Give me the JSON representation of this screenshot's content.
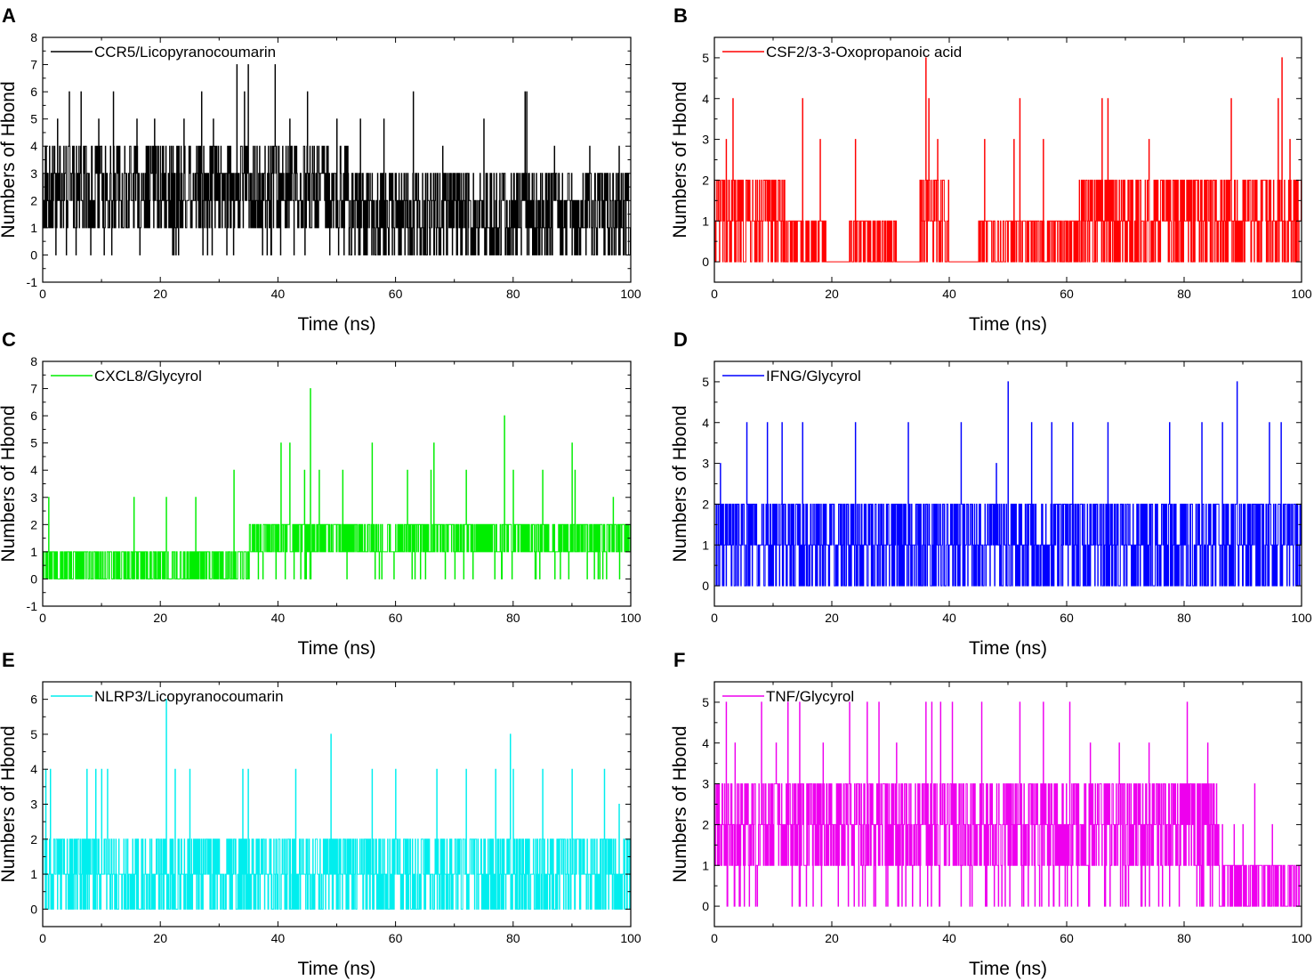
{
  "chart_data": [
    {
      "panel": "A",
      "type": "line",
      "color": "#000000",
      "legend": "CCR5/Licopyranocoumarin",
      "xlabel": "Time (ns)",
      "ylabel": "Numbers of Hbond",
      "xlim": [
        0,
        100
      ],
      "ylim": [
        -1,
        8
      ],
      "xticks": [
        0,
        20,
        40,
        60,
        80,
        100
      ],
      "yticks": [
        -1,
        0,
        1,
        2,
        3,
        4,
        5,
        6,
        7,
        8
      ],
      "segments": [
        {
          "t0": 0,
          "t1": 52,
          "base": [
            1,
            4
          ],
          "dip": 0,
          "dipProb": 0.04
        },
        {
          "t0": 52,
          "t1": 100,
          "base": [
            0,
            3
          ],
          "dip": 0,
          "dipProb": 0.0
        }
      ],
      "spikes": [
        [
          2.5,
          5
        ],
        [
          4.5,
          6
        ],
        [
          6.5,
          6
        ],
        [
          9.5,
          5
        ],
        [
          12,
          6
        ],
        [
          16,
          5
        ],
        [
          19,
          5
        ],
        [
          24,
          5
        ],
        [
          27,
          6
        ],
        [
          29,
          5
        ],
        [
          33,
          7
        ],
        [
          34.3,
          6
        ],
        [
          35,
          7
        ],
        [
          39.5,
          7
        ],
        [
          42,
          5
        ],
        [
          45,
          6
        ],
        [
          50,
          5
        ],
        [
          54,
          5
        ],
        [
          58,
          5
        ],
        [
          63,
          6
        ],
        [
          68,
          4
        ],
        [
          75,
          5
        ],
        [
          82,
          6
        ],
        [
          82.3,
          6
        ],
        [
          87,
          4
        ],
        [
          93,
          4
        ],
        [
          98,
          4
        ]
      ]
    },
    {
      "panel": "B",
      "type": "line",
      "color": "#ff0000",
      "legend": "CSF2/3-3-Oxopropanoic acid",
      "xlabel": "Time (ns)",
      "ylabel": "Numbers of Hbond",
      "xlim": [
        0,
        100
      ],
      "ylim": [
        -0.5,
        5.5
      ],
      "xticks": [
        0,
        20,
        40,
        60,
        80,
        100
      ],
      "yticks": [
        0,
        1,
        2,
        3,
        4,
        5
      ],
      "segments": [
        {
          "t0": 0,
          "t1": 12,
          "base": [
            0,
            2
          ],
          "dip": 0,
          "dipProb": 0.0
        },
        {
          "t0": 12,
          "t1": 19,
          "base": [
            0,
            1
          ],
          "dip": 0,
          "dipProb": 0.0
        },
        {
          "t0": 19,
          "t1": 23,
          "base": [
            0,
            0
          ],
          "dip": 0,
          "dipProb": 0.0
        },
        {
          "t0": 23,
          "t1": 31,
          "base": [
            0,
            1
          ],
          "dip": 0,
          "dipProb": 0.0
        },
        {
          "t0": 31,
          "t1": 35,
          "base": [
            0,
            0
          ],
          "dip": 0,
          "dipProb": 0.0
        },
        {
          "t0": 35,
          "t1": 40,
          "base": [
            0,
            2
          ],
          "dip": 0,
          "dipProb": 0.0
        },
        {
          "t0": 40,
          "t1": 45,
          "base": [
            0,
            0
          ],
          "dip": 0,
          "dipProb": 0.0
        },
        {
          "t0": 45,
          "t1": 62,
          "base": [
            0,
            1
          ],
          "dip": 0,
          "dipProb": 0.0
        },
        {
          "t0": 62,
          "t1": 100,
          "base": [
            0,
            2
          ],
          "dip": 0,
          "dipProb": 0.0
        }
      ],
      "spikes": [
        [
          2,
          3
        ],
        [
          3.2,
          4
        ],
        [
          15,
          4
        ],
        [
          18,
          3
        ],
        [
          24,
          3
        ],
        [
          36,
          5
        ],
        [
          36.5,
          4
        ],
        [
          38,
          3
        ],
        [
          46,
          3
        ],
        [
          51,
          3
        ],
        [
          52,
          4
        ],
        [
          56,
          3
        ],
        [
          66,
          4
        ],
        [
          67,
          4
        ],
        [
          74,
          3
        ],
        [
          88,
          4
        ],
        [
          96,
          4
        ],
        [
          96.7,
          5
        ],
        [
          98,
          3
        ]
      ]
    },
    {
      "panel": "C",
      "type": "line",
      "color": "#00ee00",
      "legend": "CXCL8/Glycyrol",
      "xlabel": "Time (ns)",
      "ylabel": "Numbers of Hbond",
      "xlim": [
        0,
        100
      ],
      "ylim": [
        -1,
        8
      ],
      "xticks": [
        0,
        20,
        40,
        60,
        80,
        100
      ],
      "yticks": [
        -1,
        0,
        1,
        2,
        3,
        4,
        5,
        6,
        7,
        8
      ],
      "segments": [
        {
          "t0": 0,
          "t1": 35,
          "base": [
            0,
            1
          ],
          "dip": 0,
          "dipProb": 0.0
        },
        {
          "t0": 35,
          "t1": 100,
          "base": [
            1,
            2
          ],
          "dip": 0,
          "dipProb": 0.05
        }
      ],
      "spikes": [
        [
          1,
          3
        ],
        [
          15.5,
          3
        ],
        [
          21,
          3
        ],
        [
          26,
          3
        ],
        [
          32.5,
          4
        ],
        [
          40.5,
          5
        ],
        [
          42,
          5
        ],
        [
          44.5,
          4
        ],
        [
          45.5,
          7
        ],
        [
          47,
          4
        ],
        [
          51,
          4
        ],
        [
          56,
          5
        ],
        [
          62,
          4
        ],
        [
          66,
          4
        ],
        [
          66.5,
          5
        ],
        [
          72,
          4
        ],
        [
          78.5,
          6
        ],
        [
          80,
          4
        ],
        [
          85,
          4
        ],
        [
          90,
          5
        ],
        [
          90.5,
          4
        ],
        [
          97,
          3
        ]
      ]
    },
    {
      "panel": "D",
      "type": "line",
      "color": "#0000ff",
      "legend": "IFNG/Glycyrol",
      "xlabel": "Time (ns)",
      "ylabel": "Numbers of Hbond",
      "xlim": [
        0,
        100
      ],
      "ylim": [
        -0.5,
        5.5
      ],
      "xticks": [
        0,
        20,
        40,
        60,
        80,
        100
      ],
      "yticks": [
        0,
        1,
        2,
        3,
        4,
        5
      ],
      "segments": [
        {
          "t0": 0,
          "t1": 100,
          "base": [
            0,
            2
          ],
          "dip": 0,
          "dipProb": 0.0
        }
      ],
      "spikes": [
        [
          1,
          3
        ],
        [
          5.5,
          4
        ],
        [
          9,
          4
        ],
        [
          11.5,
          4
        ],
        [
          15,
          4
        ],
        [
          24,
          4
        ],
        [
          33,
          4
        ],
        [
          42,
          4
        ],
        [
          48,
          3
        ],
        [
          50,
          5
        ],
        [
          54,
          4
        ],
        [
          57.5,
          4
        ],
        [
          61,
          4
        ],
        [
          67,
          4
        ],
        [
          77.5,
          4
        ],
        [
          83,
          4
        ],
        [
          86.5,
          4
        ],
        [
          89,
          5
        ],
        [
          94.5,
          4
        ],
        [
          96.5,
          4
        ]
      ]
    },
    {
      "panel": "E",
      "type": "line",
      "color": "#00eeee",
      "legend": "NLRP3/Licopyranocoumarin",
      "xlabel": "Time (ns)",
      "ylabel": "Numbers of Hbond",
      "xlim": [
        0,
        100
      ],
      "ylim": [
        -0.5,
        6.5
      ],
      "xticks": [
        0,
        20,
        40,
        60,
        80,
        100
      ],
      "yticks": [
        0,
        1,
        2,
        3,
        4,
        5,
        6
      ],
      "segments": [
        {
          "t0": 0,
          "t1": 100,
          "base": [
            0,
            2
          ],
          "dip": 0,
          "dipProb": 0.0
        }
      ],
      "spikes": [
        [
          0.5,
          4
        ],
        [
          1.3,
          4
        ],
        [
          7.5,
          4
        ],
        [
          9,
          4
        ],
        [
          10,
          4
        ],
        [
          11,
          4
        ],
        [
          21,
          6
        ],
        [
          22.5,
          4
        ],
        [
          25,
          4
        ],
        [
          34,
          4
        ],
        [
          35,
          4
        ],
        [
          43,
          4
        ],
        [
          49,
          5
        ],
        [
          56,
          4
        ],
        [
          60,
          4
        ],
        [
          67,
          4
        ],
        [
          72,
          4
        ],
        [
          77,
          4
        ],
        [
          79.5,
          5
        ],
        [
          80,
          4
        ],
        [
          85,
          4
        ],
        [
          90,
          4
        ],
        [
          95.5,
          4
        ],
        [
          98,
          3
        ]
      ]
    },
    {
      "panel": "F",
      "type": "line",
      "color": "#ee00ee",
      "legend": "TNF/Glycyrol",
      "xlabel": "Time (ns)",
      "ylabel": "Numbers of Hbond",
      "xlim": [
        0,
        100
      ],
      "ylim": [
        -0.5,
        5.5
      ],
      "xticks": [
        0,
        20,
        40,
        60,
        80,
        100
      ],
      "yticks": [
        0,
        1,
        2,
        3,
        4,
        5
      ],
      "segments": [
        {
          "t0": 0,
          "t1": 86,
          "base": [
            1,
            3
          ],
          "dip": 0,
          "dipProb": 0.08
        },
        {
          "t0": 86,
          "t1": 100,
          "base": [
            0,
            1
          ],
          "dip": 0,
          "dipProb": 0.0
        }
      ],
      "spikes": [
        [
          2,
          5
        ],
        [
          3.5,
          4
        ],
        [
          8,
          5
        ],
        [
          10.5,
          4
        ],
        [
          12.5,
          5
        ],
        [
          14.5,
          5
        ],
        [
          18.5,
          4
        ],
        [
          23,
          5
        ],
        [
          26,
          5
        ],
        [
          28,
          5
        ],
        [
          31,
          4
        ],
        [
          36,
          5
        ],
        [
          37,
          5
        ],
        [
          38.5,
          5
        ],
        [
          40.5,
          5
        ],
        [
          45.5,
          5
        ],
        [
          52,
          5
        ],
        [
          56,
          5
        ],
        [
          60.5,
          5
        ],
        [
          64,
          4
        ],
        [
          69,
          4
        ],
        [
          74,
          4
        ],
        [
          80.5,
          5
        ],
        [
          84,
          4
        ],
        [
          86.5,
          2
        ],
        [
          88.5,
          2
        ],
        [
          90,
          2
        ],
        [
          92,
          3
        ],
        [
          95,
          2
        ]
      ]
    }
  ]
}
